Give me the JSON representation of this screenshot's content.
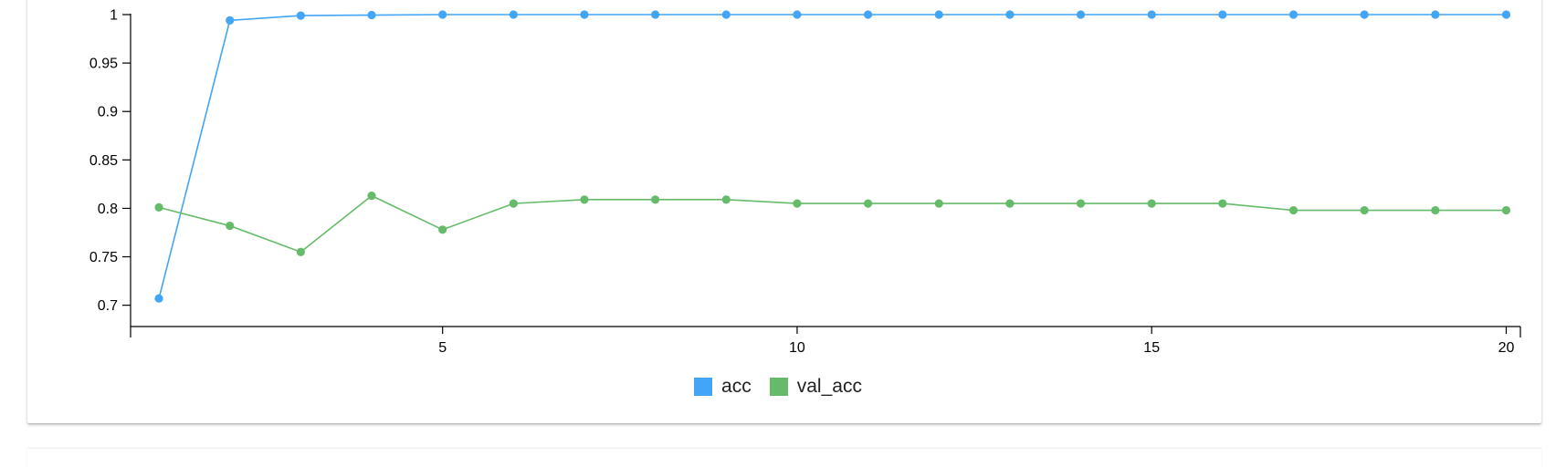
{
  "chart_data": {
    "type": "line",
    "title": "",
    "xlabel": "",
    "ylabel": "",
    "x": [
      1,
      2,
      3,
      4,
      5,
      6,
      7,
      8,
      9,
      10,
      11,
      12,
      13,
      14,
      15,
      16,
      17,
      18,
      19,
      20
    ],
    "xlim": [
      0.6,
      20.2
    ],
    "ylim": [
      0.678,
      1.0
    ],
    "x_ticks": [
      5,
      10,
      15,
      20
    ],
    "y_ticks": [
      0.7,
      0.75,
      0.8,
      0.85,
      0.9,
      0.95,
      1
    ],
    "x_tick_labels": [
      "5",
      "10",
      "15",
      "20"
    ],
    "y_tick_labels": [
      "0.7",
      "0.75",
      "0.8",
      "0.85",
      "0.9",
      "0.95",
      "1"
    ],
    "grid": false,
    "legend_position": "bottom-center",
    "series": [
      {
        "name": "acc",
        "color": "#42a5f5",
        "values": [
          0.707,
          0.994,
          0.999,
          0.9995,
          1.0,
          1.0,
          1.0,
          1.0,
          1.0,
          1.0,
          1.0,
          1.0,
          1.0,
          1.0,
          1.0,
          1.0,
          1.0,
          1.0,
          1.0,
          1.0
        ]
      },
      {
        "name": "val_acc",
        "color": "#66bb6a",
        "values": [
          0.801,
          0.782,
          0.755,
          0.813,
          0.778,
          0.805,
          0.809,
          0.809,
          0.809,
          0.805,
          0.805,
          0.805,
          0.805,
          0.805,
          0.805,
          0.805,
          0.798,
          0.798,
          0.798,
          0.798
        ]
      }
    ]
  }
}
